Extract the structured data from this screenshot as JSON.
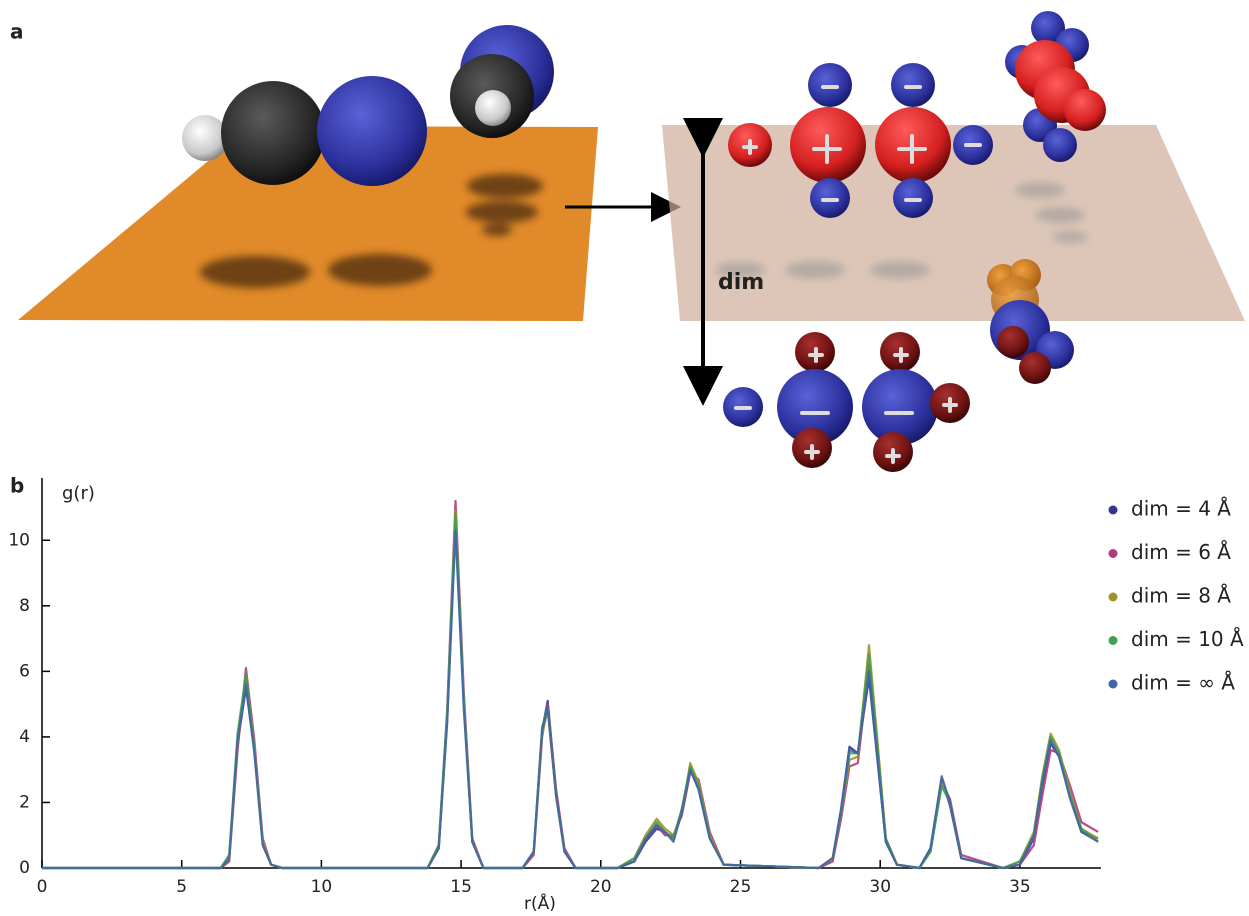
{
  "panel_a": {
    "label": "a",
    "distance_label": "dim"
  },
  "chart_data": {
    "type": "line",
    "panel_label": "b",
    "ylabel": "g(r)",
    "xlabel": "r(Å)",
    "x": [
      0,
      6.4,
      6.7,
      7.0,
      7.3,
      7.6,
      7.9,
      8.2,
      8.6,
      13.8,
      14.2,
      14.5,
      14.8,
      15.1,
      15.4,
      15.8,
      17.2,
      17.6,
      17.9,
      18.1,
      18.4,
      18.7,
      19.1,
      20.6,
      21.2,
      21.6,
      22.0,
      22.3,
      22.6,
      22.9,
      23.2,
      23.5,
      23.9,
      24.4,
      27.8,
      28.3,
      28.6,
      28.9,
      29.2,
      29.6,
      29.9,
      30.2,
      30.6,
      31.4,
      31.8,
      32.2,
      32.5,
      32.9,
      34.4,
      35.0,
      35.5,
      35.8,
      36.1,
      36.4,
      36.8,
      37.2,
      37.8
    ],
    "series": [
      {
        "name": "dim = 4 Å",
        "color": "#35358f",
        "values": [
          0,
          0,
          0.3,
          3.8,
          5.5,
          3.6,
          0.8,
          0.1,
          0,
          0,
          0.6,
          4.5,
          10.6,
          5.0,
          0.8,
          0,
          0,
          0.5,
          4.2,
          5.1,
          2.3,
          0.5,
          0,
          0,
          0.2,
          0.8,
          1.2,
          1.1,
          0.9,
          1.8,
          3.0,
          2.4,
          0.9,
          0.1,
          0,
          0.3,
          1.8,
          3.7,
          3.5,
          5.8,
          3.3,
          0.8,
          0.1,
          0,
          0.6,
          2.7,
          1.9,
          0.3,
          0,
          0.1,
          0.9,
          2.5,
          3.8,
          3.4,
          2.2,
          1.1,
          0.9
        ]
      },
      {
        "name": "dim = 6 Å",
        "color": "#b23a7a",
        "values": [
          0,
          0,
          0.2,
          3.6,
          6.1,
          3.9,
          0.9,
          0.1,
          0,
          0,
          0.7,
          4.8,
          11.2,
          5.3,
          0.9,
          0,
          0,
          0.4,
          4.0,
          5.0,
          2.4,
          0.6,
          0,
          0,
          0.2,
          0.9,
          1.3,
          1.0,
          1.0,
          1.6,
          2.9,
          2.7,
          1.1,
          0.1,
          0,
          0.2,
          1.5,
          3.1,
          3.2,
          6.2,
          3.8,
          0.9,
          0.1,
          0,
          0.5,
          2.6,
          2.1,
          0.4,
          0,
          0.1,
          0.7,
          2.2,
          3.6,
          3.5,
          2.5,
          1.4,
          1.1
        ]
      },
      {
        "name": "dim = 8 Å",
        "color": "#a0922a",
        "values": [
          0,
          0,
          0.3,
          3.9,
          5.8,
          3.7,
          0.8,
          0.1,
          0,
          0,
          0.6,
          4.6,
          10.9,
          5.1,
          0.8,
          0,
          0,
          0.5,
          4.1,
          4.8,
          2.2,
          0.5,
          0,
          0,
          0.3,
          1.0,
          1.5,
          1.2,
          1.0,
          1.7,
          3.2,
          2.6,
          1.0,
          0.1,
          0,
          0.3,
          1.7,
          3.3,
          3.4,
          6.8,
          3.9,
          0.9,
          0.1,
          0,
          0.5,
          2.6,
          2.0,
          0.3,
          0,
          0.2,
          1.1,
          2.8,
          4.1,
          3.6,
          2.3,
          1.2,
          0.9
        ]
      },
      {
        "name": "dim = 10 Å",
        "color": "#3fa14b",
        "values": [
          0,
          0,
          0.4,
          4.1,
          5.9,
          3.6,
          0.7,
          0.1,
          0,
          0,
          0.7,
          4.7,
          10.8,
          5.0,
          0.8,
          0,
          0,
          0.5,
          4.3,
          4.9,
          2.2,
          0.5,
          0,
          0,
          0.3,
          0.9,
          1.4,
          1.1,
          0.9,
          1.8,
          3.1,
          2.5,
          0.9,
          0.1,
          0,
          0.3,
          1.7,
          3.5,
          3.5,
          6.5,
          3.7,
          0.9,
          0.1,
          0,
          0.5,
          2.5,
          2.0,
          0.3,
          0,
          0.2,
          1.0,
          2.7,
          4.0,
          3.5,
          2.2,
          1.2,
          0.8
        ]
      },
      {
        "name": "dim = ∞ Å",
        "color": "#3f66a8",
        "values": [
          0,
          0,
          0.3,
          3.9,
          5.6,
          3.5,
          0.7,
          0.1,
          0,
          0,
          0.6,
          4.4,
          10.3,
          4.8,
          0.8,
          0,
          0,
          0.5,
          4.2,
          4.9,
          2.2,
          0.5,
          0,
          0,
          0.2,
          0.9,
          1.3,
          1.1,
          0.8,
          1.7,
          3.0,
          2.4,
          0.9,
          0.1,
          0,
          0.3,
          1.8,
          3.6,
          3.5,
          6.0,
          3.4,
          0.8,
          0.1,
          0,
          0.6,
          2.8,
          2.0,
          0.3,
          0,
          0.1,
          1.0,
          2.6,
          3.9,
          3.4,
          2.1,
          1.1,
          0.8
        ]
      }
    ],
    "xlim": [
      0,
      37.9
    ],
    "xticks": [
      0,
      5,
      10,
      15,
      20,
      25,
      30,
      35
    ],
    "ylim": [
      0,
      11.9
    ],
    "yticks": [
      0,
      2,
      4,
      6,
      8,
      10
    ],
    "legend": "upper right",
    "grid": false
  }
}
